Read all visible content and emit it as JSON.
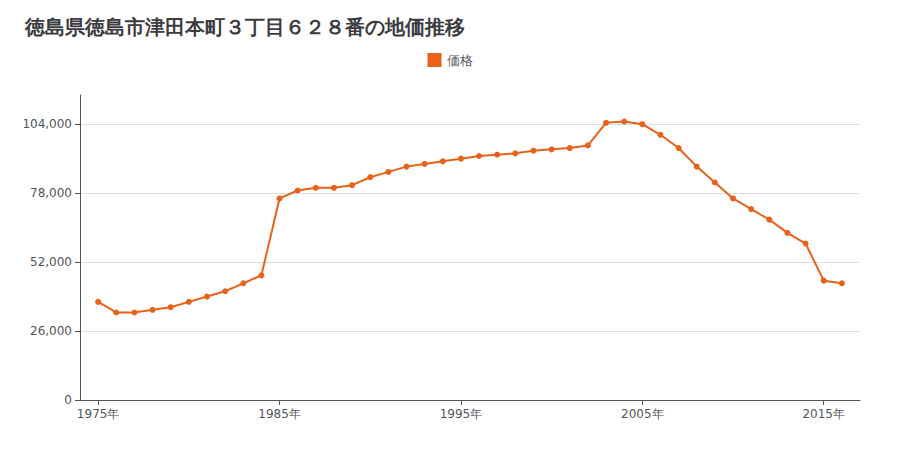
{
  "chart_data": {
    "type": "line",
    "title": "徳島県徳島市津田本町３丁目６２８番の地価推移",
    "series": [
      {
        "name": "価格",
        "color": "#e8621a",
        "marker": "circle",
        "values": [
          37000,
          33000,
          33000,
          34000,
          35000,
          37000,
          39000,
          41000,
          44000,
          47000,
          76000,
          79000,
          80000,
          80000,
          81000,
          84000,
          86000,
          88000,
          89000,
          90000,
          91000,
          92000,
          92500,
          93000,
          94000,
          94500,
          95000,
          96000,
          104500,
          105000,
          104000,
          100000,
          95000,
          88000,
          82000,
          76000,
          72000,
          68000,
          63000,
          59000,
          45000,
          44000
        ]
      }
    ],
    "x": [
      1975,
      1976,
      1977,
      1978,
      1979,
      1980,
      1981,
      1982,
      1983,
      1984,
      1985,
      1986,
      1987,
      1988,
      1989,
      1990,
      1991,
      1992,
      1993,
      1994,
      1995,
      1996,
      1997,
      1998,
      1999,
      2000,
      2001,
      2002,
      2003,
      2004,
      2005,
      2006,
      2007,
      2008,
      2009,
      2010,
      2011,
      2012,
      2013,
      2014,
      2015,
      2016
    ],
    "xlim": [
      1974,
      2017
    ],
    "xticks": [
      {
        "value": 1975,
        "label": "1975年"
      },
      {
        "value": 1985,
        "label": "1985年"
      },
      {
        "value": 1995,
        "label": "1995年"
      },
      {
        "value": 2005,
        "label": "2005年"
      },
      {
        "value": 2015,
        "label": "2015年"
      }
    ],
    "ylim": [
      0,
      115000
    ],
    "yticks": [
      0,
      {
        "value": 26000,
        "label": "26,000"
      },
      {
        "value": 52000,
        "label": "52,000"
      },
      {
        "value": 78000,
        "label": "78,000"
      },
      {
        "value": 104000,
        "label": "104,000"
      }
    ],
    "grid": "y",
    "legend": "top"
  }
}
